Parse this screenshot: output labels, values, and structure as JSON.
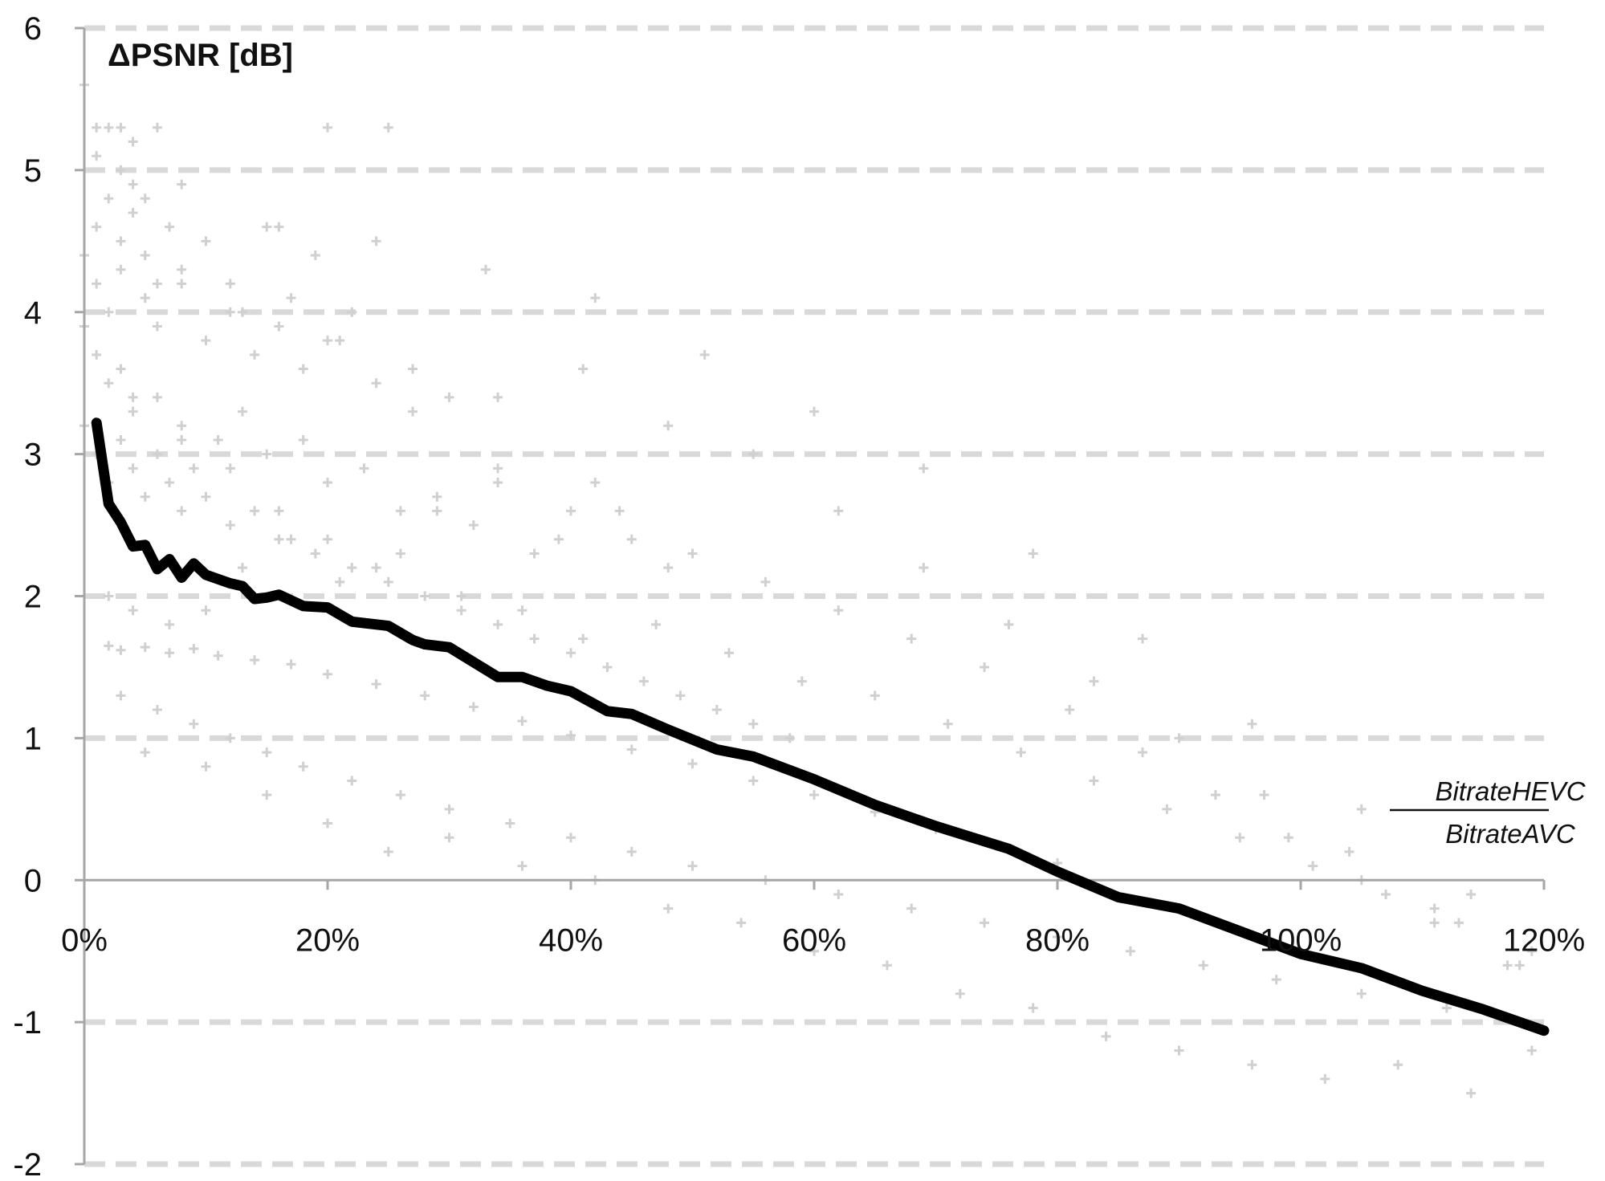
{
  "chart_data": {
    "type": "scatter",
    "title": "",
    "ylabel": "ΔPSNR [dB]",
    "xlabel": {
      "numerator": "BitrateHEVC",
      "denominator": "BitrateAVC"
    },
    "xlim": [
      0,
      1.2
    ],
    "ylim": [
      -2,
      6
    ],
    "x_ticks": [
      0,
      0.2,
      0.4,
      0.6,
      0.8,
      1.0,
      1.2
    ],
    "x_tick_labels": [
      "0%",
      "20%",
      "40%",
      "60%",
      "80%",
      "100%",
      "120%"
    ],
    "y_ticks": [
      -2,
      -1,
      0,
      1,
      2,
      3,
      4,
      5,
      6
    ],
    "y_tick_labels": [
      "-2",
      "-1",
      "0",
      "1",
      "2",
      "3",
      "4",
      "5",
      "6"
    ],
    "grid": "horizontal-dashed",
    "legend": "none",
    "colors": {
      "scatter": "#d0d0d0",
      "trend": "#000000",
      "grid": "#d9d9d9",
      "axis": "#a6a6a6"
    },
    "series": [
      {
        "type": "line",
        "x": [
          0.01,
          0.02,
          0.03,
          0.04,
          0.05,
          0.06,
          0.07,
          0.08,
          0.09,
          0.1,
          0.12,
          0.13,
          0.14,
          0.15,
          0.16,
          0.18,
          0.2,
          0.22,
          0.25,
          0.27,
          0.28,
          0.3,
          0.34,
          0.36,
          0.38,
          0.4,
          0.43,
          0.45,
          0.48,
          0.52,
          0.55,
          0.6,
          0.65,
          0.7,
          0.73,
          0.76,
          0.8,
          0.85,
          0.9,
          0.95,
          1.0,
          1.05,
          1.1,
          1.15,
          1.2
        ],
        "y": [
          3.22,
          2.65,
          2.52,
          2.35,
          2.36,
          2.19,
          2.26,
          2.13,
          2.23,
          2.15,
          2.09,
          2.07,
          1.98,
          1.99,
          2.01,
          1.93,
          1.92,
          1.82,
          1.79,
          1.69,
          1.66,
          1.64,
          1.43,
          1.43,
          1.37,
          1.33,
          1.19,
          1.17,
          1.06,
          0.92,
          0.87,
          0.71,
          0.53,
          0.38,
          0.3,
          0.22,
          0.06,
          -0.12,
          -0.2,
          -0.36,
          -0.52,
          -0.62,
          -0.78,
          -0.91,
          -1.06
        ]
      },
      {
        "type": "scatter",
        "x": [
          0.0,
          0.01,
          0.01,
          0.02,
          0.03,
          0.03,
          0.04,
          0.04,
          0.05,
          0.06,
          0.01,
          0.02,
          0.03,
          0.04,
          0.05,
          0.07,
          0.08,
          0.1,
          0.12,
          0.15,
          0.17,
          0.19,
          0.2,
          0.22,
          0.25,
          0.0,
          0.01,
          0.02,
          0.03,
          0.05,
          0.06,
          0.08,
          0.1,
          0.12,
          0.14,
          0.16,
          0.18,
          0.21,
          0.24,
          0.27,
          0.3,
          0.0,
          0.01,
          0.02,
          0.03,
          0.04,
          0.06,
          0.08,
          0.11,
          0.13,
          0.15,
          0.18,
          0.2,
          0.23,
          0.26,
          0.29,
          0.32,
          0.34,
          0.37,
          0.4,
          0.42,
          0.45,
          0.48,
          0.0,
          0.01,
          0.02,
          0.03,
          0.04,
          0.05,
          0.06,
          0.07,
          0.08,
          0.09,
          0.1,
          0.12,
          0.14,
          0.16,
          0.19,
          0.22,
          0.25,
          0.28,
          0.31,
          0.34,
          0.37,
          0.4,
          0.43,
          0.46,
          0.49,
          0.52,
          0.55,
          0.58,
          0.02,
          0.03,
          0.05,
          0.07,
          0.09,
          0.11,
          0.14,
          0.17,
          0.2,
          0.24,
          0.28,
          0.32,
          0.36,
          0.4,
          0.45,
          0.5,
          0.55,
          0.6,
          0.65,
          0.7,
          0.75,
          0.8,
          0.03,
          0.06,
          0.09,
          0.12,
          0.15,
          0.18,
          0.22,
          0.26,
          0.3,
          0.35,
          0.4,
          0.45,
          0.5,
          0.56,
          0.62,
          0.68,
          0.74,
          0.8,
          0.86,
          0.92,
          0.98,
          1.05,
          1.12,
          1.18,
          0.05,
          0.1,
          0.15,
          0.2,
          0.25,
          0.3,
          0.36,
          0.42,
          0.48,
          0.54,
          0.6,
          0.66,
          0.72,
          0.78,
          0.84,
          0.9,
          0.96,
          1.02,
          1.08,
          1.14,
          1.19,
          0.02,
          0.04,
          0.07,
          0.1,
          0.13,
          0.17,
          0.21,
          0.26,
          0.31,
          0.36,
          0.41,
          0.47,
          0.53,
          0.59,
          0.65,
          0.71,
          0.77,
          0.83,
          0.89,
          0.95,
          1.01,
          1.07,
          1.13,
          1.19,
          0.04,
          0.08,
          0.12,
          0.16,
          0.2,
          0.24,
          0.29,
          0.34,
          0.39,
          0.44,
          0.5,
          0.56,
          0.62,
          0.68,
          0.74,
          0.81,
          0.87,
          0.93,
          0.99,
          1.05,
          1.11,
          1.17,
          0.06,
          0.13,
          0.2,
          0.27,
          0.34,
          0.41,
          0.48,
          0.55,
          0.62,
          0.69,
          0.76,
          0.83,
          0.9,
          0.97,
          1.04,
          1.11,
          1.18,
          0.08,
          0.16,
          0.24,
          0.33,
          0.42,
          0.51,
          0.6,
          0.69,
          0.78,
          0.87,
          0.96,
          1.05,
          1.14
        ],
        "y": [
          5.6,
          5.3,
          5.1,
          5.3,
          5.0,
          5.3,
          4.9,
          5.2,
          4.8,
          5.3,
          4.6,
          4.8,
          4.5,
          4.7,
          4.4,
          4.6,
          4.3,
          4.5,
          4.2,
          4.6,
          4.1,
          4.4,
          5.3,
          4.0,
          5.3,
          4.4,
          4.2,
          4.0,
          4.3,
          4.1,
          3.9,
          4.2,
          3.8,
          4.0,
          3.7,
          3.9,
          3.6,
          3.8,
          3.5,
          3.3,
          3.4,
          3.9,
          3.7,
          3.5,
          3.6,
          3.3,
          3.4,
          3.2,
          3.1,
          3.3,
          3.0,
          3.1,
          2.8,
          2.9,
          2.6,
          2.7,
          2.5,
          2.9,
          2.3,
          2.6,
          2.8,
          2.4,
          2.2,
          3.2,
          3.0,
          2.8,
          3.1,
          2.9,
          2.7,
          3.0,
          2.8,
          2.6,
          2.9,
          2.7,
          2.5,
          2.6,
          2.4,
          2.3,
          2.2,
          2.1,
          2.0,
          1.9,
          1.8,
          1.7,
          1.6,
          1.5,
          1.4,
          1.3,
          1.2,
          1.1,
          1.0,
          1.65,
          1.62,
          1.64,
          1.6,
          1.63,
          1.58,
          1.55,
          1.52,
          1.45,
          1.38,
          1.3,
          1.22,
          1.12,
          1.02,
          0.92,
          0.82,
          0.7,
          0.6,
          0.48,
          0.36,
          0.24,
          0.12,
          1.3,
          1.2,
          1.1,
          1.0,
          0.9,
          0.8,
          0.7,
          0.6,
          0.5,
          0.4,
          0.3,
          0.2,
          0.1,
          0.0,
          -0.1,
          -0.2,
          -0.3,
          -0.4,
          -0.5,
          -0.6,
          -0.7,
          -0.8,
          -0.9,
          -1.0,
          0.9,
          0.8,
          0.6,
          0.4,
          0.2,
          0.3,
          0.1,
          0.0,
          -0.2,
          -0.3,
          -0.5,
          -0.6,
          -0.8,
          -0.9,
          -1.1,
          -1.2,
          -1.3,
          -1.4,
          -1.3,
          -1.5,
          -1.2,
          2.0,
          1.9,
          1.8,
          1.9,
          2.2,
          2.4,
          2.1,
          2.3,
          2.0,
          1.9,
          1.7,
          1.8,
          1.6,
          1.4,
          1.3,
          1.1,
          0.9,
          0.7,
          0.5,
          0.3,
          0.1,
          -0.1,
          -0.3,
          -0.5,
          3.4,
          3.1,
          2.9,
          2.6,
          2.4,
          2.2,
          2.6,
          2.8,
          2.4,
          2.6,
          2.3,
          2.1,
          1.9,
          1.7,
          1.5,
          1.2,
          0.9,
          0.6,
          0.3,
          0.0,
          -0.3,
          -0.6,
          4.2,
          4.0,
          3.8,
          3.6,
          3.4,
          3.6,
          3.2,
          3.0,
          2.6,
          2.2,
          1.8,
          1.4,
          1.0,
          0.6,
          0.2,
          -0.2,
          -0.6,
          4.9,
          4.6,
          4.5,
          4.3,
          4.1,
          3.7,
          3.3,
          2.9,
          2.3,
          1.7,
          1.1,
          0.5,
          -0.1
        ]
      }
    ]
  }
}
